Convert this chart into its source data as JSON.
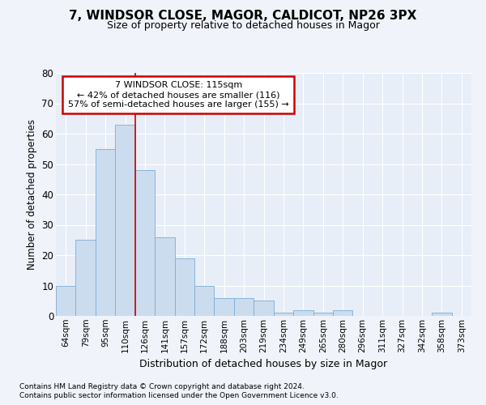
{
  "title1": "7, WINDSOR CLOSE, MAGOR, CALDICOT, NP26 3PX",
  "title2": "Size of property relative to detached houses in Magor",
  "xlabel": "Distribution of detached houses by size in Magor",
  "ylabel": "Number of detached properties",
  "categories": [
    "64sqm",
    "79sqm",
    "95sqm",
    "110sqm",
    "126sqm",
    "141sqm",
    "157sqm",
    "172sqm",
    "188sqm",
    "203sqm",
    "219sqm",
    "234sqm",
    "249sqm",
    "265sqm",
    "280sqm",
    "296sqm",
    "311sqm",
    "327sqm",
    "342sqm",
    "358sqm",
    "373sqm"
  ],
  "values": [
    10,
    25,
    55,
    63,
    48,
    26,
    19,
    10,
    6,
    6,
    5,
    1,
    2,
    1,
    2,
    0,
    0,
    0,
    0,
    1,
    0
  ],
  "bar_color": "#ccdcef",
  "bar_edge_color": "#7aadd4",
  "ylim": [
    0,
    80
  ],
  "yticks": [
    0,
    10,
    20,
    30,
    40,
    50,
    60,
    70,
    80
  ],
  "property_line_x": 3.5,
  "annotation_line1": "7 WINDSOR CLOSE: 115sqm",
  "annotation_line2": "← 42% of detached houses are smaller (116)",
  "annotation_line3": "57% of semi-detached houses are larger (155) →",
  "annotation_box_color": "#ffffff",
  "annotation_box_edge": "#cc0000",
  "footnote1": "Contains HM Land Registry data © Crown copyright and database right 2024.",
  "footnote2": "Contains public sector information licensed under the Open Government Licence v3.0.",
  "bg_color": "#f0f4fa",
  "plot_bg_color": "#e8eef7",
  "grid_color": "#ffffff",
  "title1_fontsize": 11,
  "title2_fontsize": 9
}
